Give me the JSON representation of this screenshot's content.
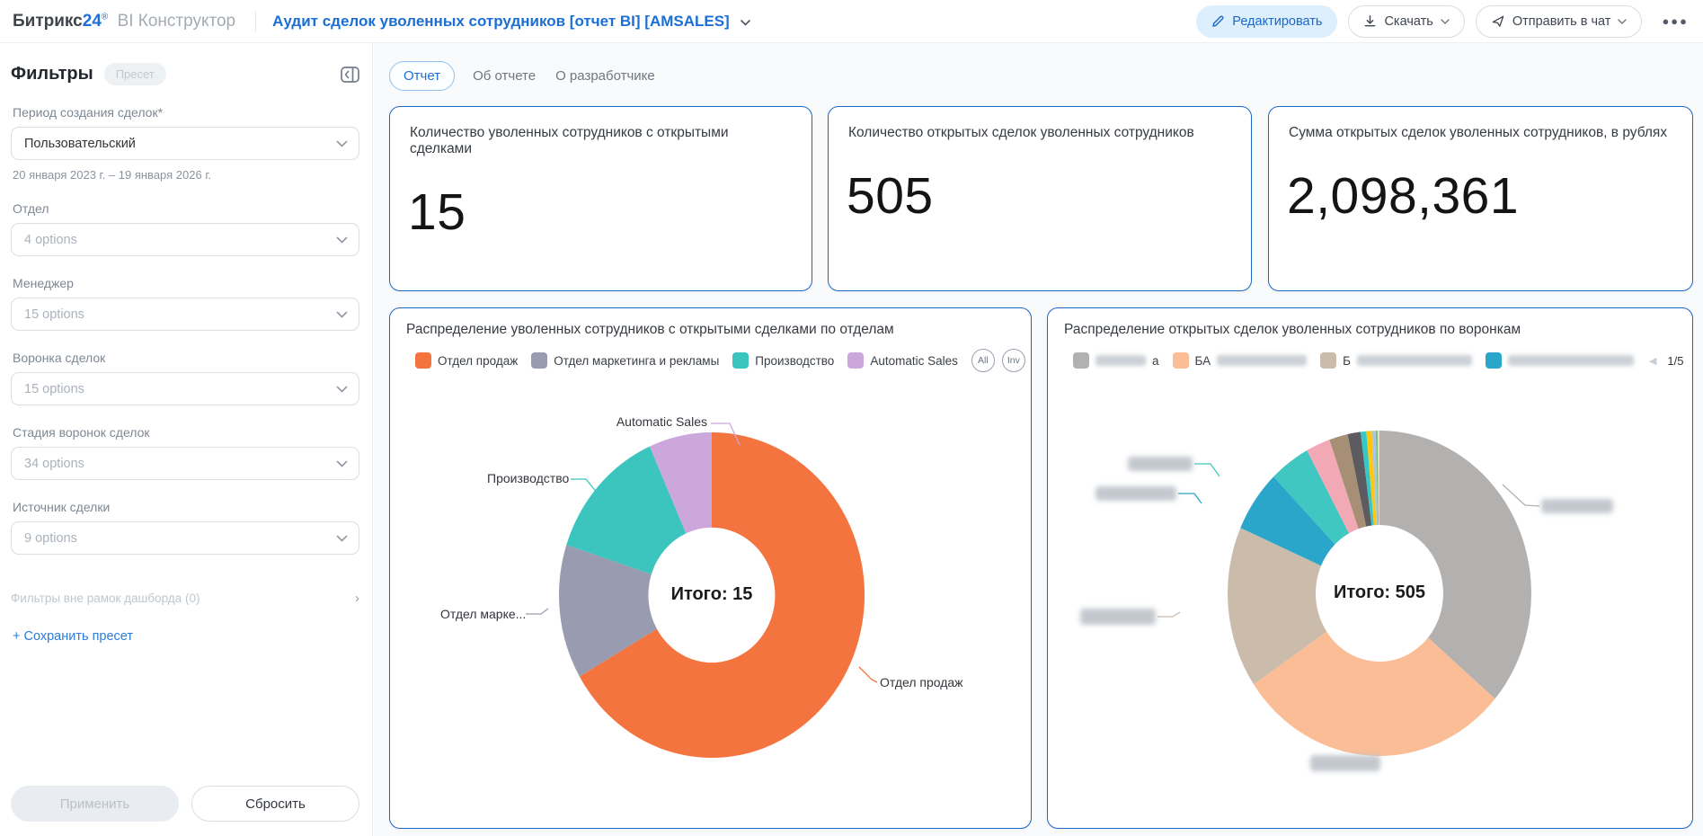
{
  "header": {
    "logo": {
      "brand": "Битрикс",
      "accent": "24",
      "reg": "®",
      "product": "BI Конструктор"
    },
    "title": "Аудит сделок уволенных сотрудников [отчет BI] [AMSALES]",
    "edit_label": "Редактировать",
    "download_label": "Скачать",
    "send_chat_label": "Отправить в чат"
  },
  "sidebar": {
    "title": "Фильтры",
    "preset_badge": "Пресет",
    "filters": [
      {
        "label": "Период создания сделок*",
        "value": "Пользовательский",
        "is_placeholder": false,
        "note": "20 января 2023 г. – 19 января 2026 г."
      },
      {
        "label": "Отдел",
        "value": "4 options",
        "is_placeholder": true
      },
      {
        "label": "Менеджер",
        "value": "15 options",
        "is_placeholder": true
      },
      {
        "label": "Воронка сделок",
        "value": "15 options",
        "is_placeholder": true
      },
      {
        "label": "Стадия воронок сделок",
        "value": "34 options",
        "is_placeholder": true
      },
      {
        "label": "Источник сделки",
        "value": "9 options",
        "is_placeholder": true
      }
    ],
    "outer_filters_link": "Фильтры вне рамок дашборда (0)",
    "save_preset_link": "+ Сохранить пресет",
    "apply_button": "Применить",
    "reset_button": "Сбросить"
  },
  "tabs": [
    {
      "label": "Отчет",
      "active": true
    },
    {
      "label": "Об отчете",
      "active": false
    },
    {
      "label": "О разработчике",
      "active": false
    }
  ],
  "kpis": [
    {
      "title": "Количество уволенных сотрудников с открытыми сделками",
      "value": "15"
    },
    {
      "title": "Количество открытых сделок уволенных сотрудников",
      "value": "505"
    },
    {
      "title": "Сумма открытых сделок уволенных сотрудников, в рублях",
      "value": "2,098,361"
    }
  ],
  "chart_data": [
    {
      "type": "pie",
      "subtype": "donut",
      "title": "Распределение уволенных сотрудников с открытыми сделками по отделам",
      "center_label": "Итого: 15",
      "total": 15,
      "legend_position": "top",
      "series": [
        {
          "label": "Отдел продаж",
          "value": 10,
          "color": "#F4743F"
        },
        {
          "label": "Отдел маркетинга и рекламы",
          "value": 2,
          "color": "#999BB0"
        },
        {
          "label": "Производство",
          "value": 2,
          "color": "#3BC5BE"
        },
        {
          "label": "Automatic Sales",
          "value": 1,
          "color": "#CBA7DB"
        }
      ],
      "controls": [
        "All",
        "Inv"
      ],
      "callouts": [
        {
          "text": "Automatic Sales",
          "series": 3,
          "blurred": false
        },
        {
          "text": "Производство",
          "series": 2,
          "blurred": false
        },
        {
          "text": "Отдел марке...",
          "series": 1,
          "blurred": false
        },
        {
          "text": "Отдел продаж",
          "series": 0,
          "blurred": false
        }
      ]
    },
    {
      "type": "pie",
      "subtype": "donut",
      "title": "Распределение открытых сделок уволенных сотрудников по воронкам",
      "center_label": "Итого: 505",
      "total": 505,
      "legend_position": "top",
      "pagination": "1/5",
      "controls": [
        "All",
        "Inv"
      ],
      "series": [
        {
          "label": "",
          "blurred": true,
          "value": 183,
          "color": "#B3B1B0"
        },
        {
          "label": "БА",
          "blurred": true,
          "value": 148,
          "color": "#FABD96"
        },
        {
          "label": "Б",
          "blurred": true,
          "value": 81,
          "color": "#CBBBAA"
        },
        {
          "label": "",
          "blurred": true,
          "value": 31,
          "color": "#2BA6CB"
        },
        {
          "label": "",
          "blurred": true,
          "value": 22,
          "color": "#41C7C1"
        },
        {
          "label": "",
          "blurred": true,
          "value": 13,
          "color": "#F1A9B6"
        },
        {
          "label": "",
          "blurred": true,
          "value": 10,
          "color": "#A78F75"
        },
        {
          "label": "",
          "blurred": true,
          "value": 7,
          "color": "#5B5B60"
        },
        {
          "label": "",
          "blurred": true,
          "value": 3,
          "color": "#35C8C8"
        },
        {
          "label": "",
          "blurred": true,
          "value": 3,
          "color": "#FDC713"
        },
        {
          "label": "",
          "blurred": true,
          "value": 2,
          "color": "#A9C5E2"
        },
        {
          "label": "",
          "blurred": true,
          "value": 1,
          "color": "#7CBF7C"
        },
        {
          "label": "",
          "blurred": true,
          "value": 1,
          "color": "#E9D9C5"
        }
      ],
      "legend_items": [
        {
          "series": 0,
          "prefix": "",
          "suffix": "а",
          "blurred": true
        },
        {
          "series": 1,
          "prefix": "БА",
          "suffix": "",
          "blurred": true
        },
        {
          "series": 2,
          "prefix": "Б",
          "suffix": "",
          "blurred": true
        },
        {
          "series": 3,
          "prefix": "",
          "suffix": "",
          "blurred": true
        }
      ],
      "callouts": [
        {
          "text": "",
          "series": 4,
          "blurred": true
        },
        {
          "text": "",
          "series": 3,
          "blurred": true
        },
        {
          "text": "",
          "series": 2,
          "blurred": true
        },
        {
          "text": "",
          "series": 0,
          "blurred": true
        },
        {
          "text": "",
          "series": 1,
          "blurred": true
        }
      ]
    }
  ]
}
